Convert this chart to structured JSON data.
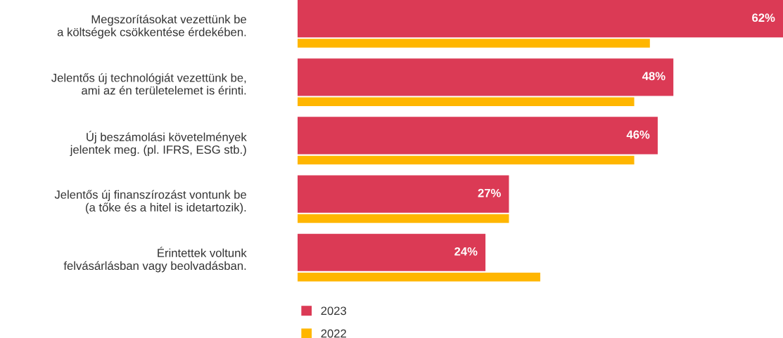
{
  "chart_data": {
    "type": "bar",
    "orientation": "horizontal",
    "categories": [
      "Megszorításokat vezettünk be\na költségek csökkentése érdekében.",
      "Jelentős új technológiát vezettünk be,\nami az én területelemet is érinti.",
      "Új beszámolási követelmények\njelentek meg. (pl. IFRS, ESG stb.)",
      "Jelentős új finanszírozást vontunk be\n(a tőke és a hitel is idetartozik).",
      "Érintettek voltunk\nfelvásárlásban vagy beolvadásban."
    ],
    "series": [
      {
        "name": "2023",
        "color": "#db3a55",
        "values": [
          62,
          48,
          46,
          27,
          24
        ],
        "value_labels": [
          "62%",
          "48%",
          "46%",
          "27%",
          "24%"
        ]
      },
      {
        "name": "2022",
        "color": "#ffb600",
        "values": [
          45,
          43,
          43,
          27,
          31
        ]
      }
    ],
    "legend": "bottom",
    "grid": false
  }
}
